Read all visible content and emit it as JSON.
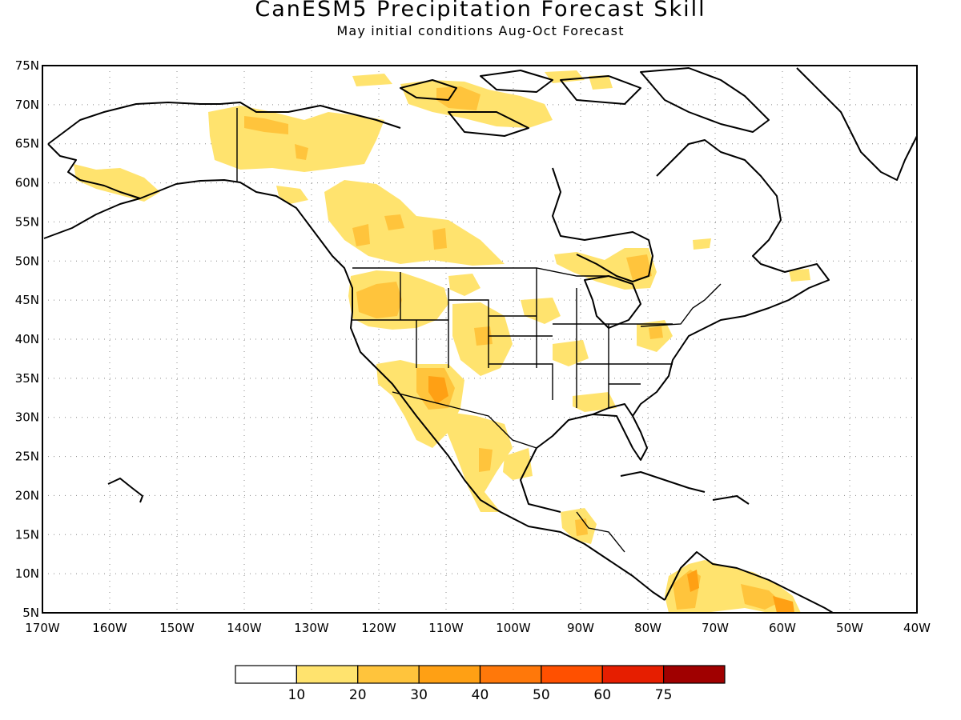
{
  "title": "CanESM5 Precipitation Forecast Skill",
  "subtitle": "May initial conditions  Aug-Oct Forecast",
  "lat_labels": [
    "75N",
    "70N",
    "65N",
    "60N",
    "55N",
    "50N",
    "45N",
    "40N",
    "35N",
    "30N",
    "25N",
    "20N",
    "15N",
    "10N",
    "5N"
  ],
  "lon_labels": [
    "170W",
    "160W",
    "150W",
    "140W",
    "130W",
    "120W",
    "110W",
    "100W",
    "90W",
    "80W",
    "70W",
    "60W",
    "50W",
    "40W"
  ],
  "legend": {
    "labels": [
      "10",
      "20",
      "30",
      "40",
      "50",
      "60",
      "75"
    ],
    "colors": [
      "#ffffff",
      "#ffe36e",
      "#ffc43c",
      "#ffa014",
      "#ff780a",
      "#ff5000",
      "#e61e00",
      "#a00000"
    ]
  },
  "skill_regions": [
    {
      "name": "north-alaska-yukon",
      "level": 1
    },
    {
      "name": "southwest-alaska",
      "level": 1
    },
    {
      "name": "northwest-canada",
      "level": 1
    },
    {
      "name": "central-canadian-prairies",
      "level": 1
    },
    {
      "name": "hudson-bay-east",
      "level": 1
    },
    {
      "name": "pacific-northwest",
      "level": 2
    },
    {
      "name": "arizona-mexico",
      "level": 2
    },
    {
      "name": "western-mexico",
      "level": 1
    },
    {
      "name": "central-america",
      "level": 1
    },
    {
      "name": "northern-south-america",
      "level": 2
    },
    {
      "name": "arctic-islands",
      "level": 2
    }
  ]
}
